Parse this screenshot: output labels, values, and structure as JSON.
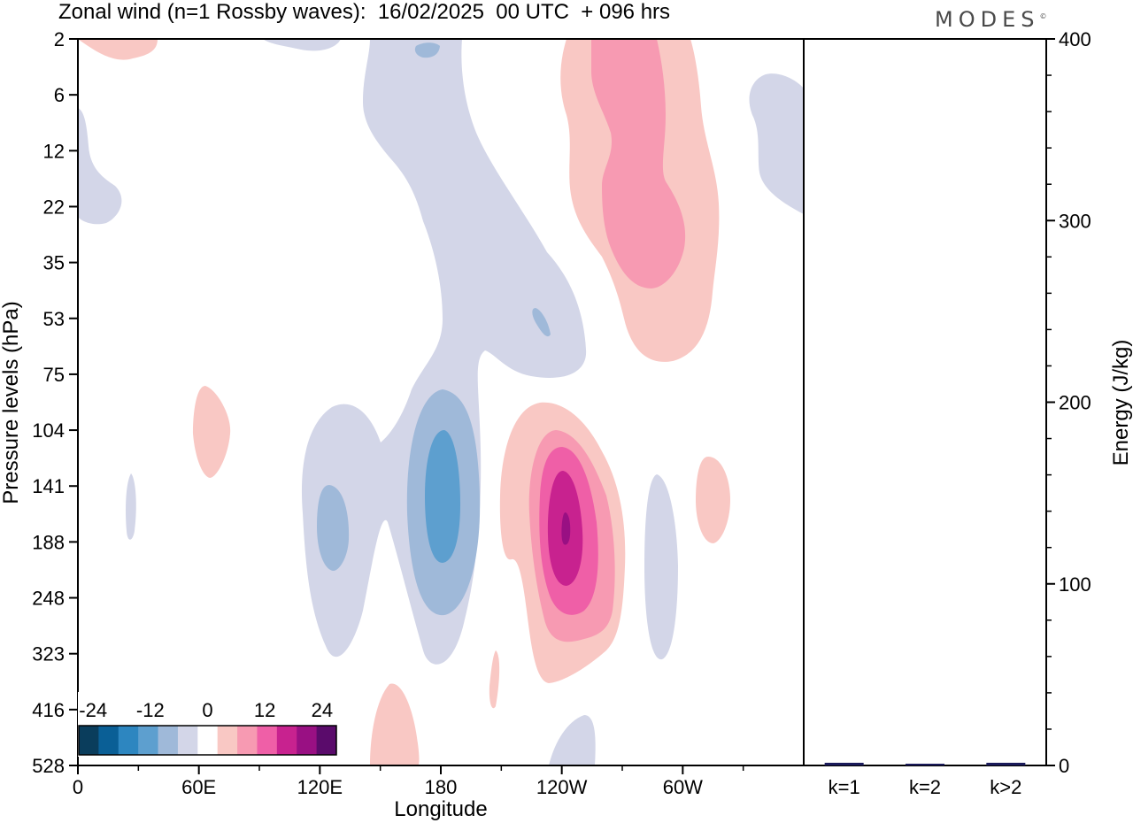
{
  "title": "Zonal wind (n=1 Rossby waves):  16/02/2025  00 UTC  + 096 hrs",
  "brand": "MODES",
  "brand_mark": "©",
  "colors": {
    "neg": [
      "#0a3d5c",
      "#0a5f96",
      "#2d86c0",
      "#5d9fcf",
      "#9fb9d9",
      "#d3d6e8"
    ],
    "pos": [
      "#f9c8c4",
      "#f79ab2",
      "#ef5fa7",
      "#c8228f",
      "#991083",
      "#5a0b6b"
    ],
    "neutral": "#ffffff",
    "energy_bar": "#1a1a5a"
  },
  "chart_data": [
    {
      "type": "heatmap",
      "title": "Zonal wind (n=1 Rossby waves):  16/02/2025  00 UTC  + 096 hrs",
      "xlabel": "Longitude",
      "ylabel": "Pressure levels (hPa)",
      "x_ticks": [
        {
          "label": "0",
          "lon": 0
        },
        {
          "label": "60E",
          "lon": 60
        },
        {
          "label": "120E",
          "lon": 120
        },
        {
          "label": "180",
          "lon": 180
        },
        {
          "label": "120W",
          "lon": 240
        },
        {
          "label": "60W",
          "lon": 300
        }
      ],
      "xlim": [
        0,
        360
      ],
      "y_ticks": [
        "2",
        "6",
        "12",
        "22",
        "35",
        "53",
        "75",
        "104",
        "141",
        "188",
        "248",
        "323",
        "416",
        "528"
      ],
      "colorbar": {
        "labels": [
          "-24",
          "-12",
          "0",
          "12",
          "24"
        ],
        "label_values": [
          -24,
          -12,
          0,
          12,
          24
        ],
        "levels": [
          -27,
          -23,
          -19,
          -15,
          -11,
          -7,
          -3,
          3,
          7,
          11,
          15,
          19,
          23,
          27
        ],
        "colors": [
          "#0a3d5c",
          "#0a5f96",
          "#2d86c0",
          "#5d9fcf",
          "#9fb9d9",
          "#d3d6e8",
          "#ffffff",
          "#f9c8c4",
          "#f79ab2",
          "#ef5fa7",
          "#c8228f",
          "#991083",
          "#5a0b6b"
        ]
      },
      "contour_note": "approximate anomaly features",
      "features": [
        {
          "lon": 187,
          "level": 0.1,
          "value": -8
        },
        {
          "lon": 255,
          "level": 2.2,
          "value": 8
        },
        {
          "lon": 262,
          "level": 2.4,
          "value": 10
        },
        {
          "lon": 14,
          "level": 0.05,
          "value": 5
        },
        {
          "lon": 360,
          "level": 1.7,
          "value": -5
        },
        {
          "lon": 0,
          "level": 2.3,
          "value": -4
        },
        {
          "lon": 185,
          "level": 3.5,
          "value": -4
        },
        {
          "lon": 225,
          "level": 4.6,
          "value": -5
        },
        {
          "lon": 205,
          "level": 4.3,
          "value": -4
        },
        {
          "lon": 65,
          "level": 7.3,
          "value": 5
        },
        {
          "lon": 27,
          "level": 8.3,
          "value": -4
        },
        {
          "lon": 125,
          "level": 8.6,
          "value": -8
        },
        {
          "lon": 180,
          "level": 8.7,
          "value": -14
        },
        {
          "lon": 240,
          "level": 8.9,
          "value": 26
        },
        {
          "lon": 288,
          "level": 9.3,
          "value": -5
        },
        {
          "lon": 316,
          "level": 8.4,
          "value": 5
        },
        {
          "lon": 165,
          "level": 12.6,
          "value": 4
        },
        {
          "lon": 255,
          "level": 13.0,
          "value": -4
        },
        {
          "lon": 209,
          "level": 11.5,
          "value": 4
        }
      ]
    },
    {
      "type": "bar",
      "categories": [
        "k=1",
        "k=2",
        "k>2"
      ],
      "values": [
        1.0,
        0.4,
        1.0
      ],
      "ylabel": "Energy (J/kg)",
      "ylim": [
        0,
        400
      ],
      "y_ticks": [
        "0",
        "100",
        "200",
        "300",
        "400"
      ]
    }
  ]
}
